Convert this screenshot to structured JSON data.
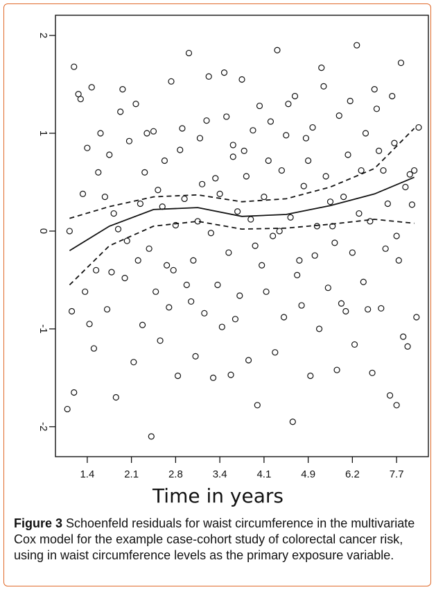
{
  "figure": {
    "label": "Figure 3",
    "caption": "Schoenfeld residuals for waist circumference in the multivariate Cox model for the example case-cohort study of colorectal cancer risk, using in waist circumference levels as the primary exposure variable."
  },
  "colors": {
    "frame": "#e06a2b",
    "ink": "#111111"
  },
  "chart_data": {
    "type": "scatter",
    "xlabel": "Time in years",
    "ylabel": "",
    "x_ticks": [
      1.4,
      2.1,
      2.8,
      3.4,
      4.1,
      4.9,
      6.2,
      7.7
    ],
    "y_ticks": [
      -2,
      -1,
      0,
      1,
      2
    ],
    "y_tick_labels": [
      "-2",
      "-1",
      "0",
      "1",
      "2"
    ],
    "ylim": [
      -2.2,
      2.1
    ],
    "x_tick_positions": [
      0,
      1,
      2,
      3,
      4,
      5,
      6,
      7
    ],
    "x_domain": [
      -0.5,
      7.5
    ],
    "grid": false,
    "points": [
      [
        -0.3,
        1.68
      ],
      [
        -0.15,
        1.35
      ],
      [
        0.1,
        1.47
      ],
      [
        0.3,
        1.0
      ],
      [
        0.5,
        0.78
      ],
      [
        0.6,
        0.18
      ],
      [
        0.8,
        1.45
      ],
      [
        1.1,
        1.3
      ],
      [
        1.3,
        0.6
      ],
      [
        1.5,
        1.02
      ],
      [
        1.7,
        0.25
      ],
      [
        1.9,
        1.53
      ],
      [
        2.1,
        0.83
      ],
      [
        2.3,
        1.82
      ],
      [
        2.5,
        0.1
      ],
      [
        2.7,
        1.13
      ],
      [
        2.9,
        0.54
      ],
      [
        3.1,
        1.62
      ],
      [
        3.3,
        0.88
      ],
      [
        3.5,
        1.55
      ],
      [
        3.7,
        0.12
      ],
      [
        3.9,
        1.28
      ],
      [
        4.1,
        0.72
      ],
      [
        4.3,
        1.85
      ],
      [
        4.5,
        0.98
      ],
      [
        4.7,
        1.38
      ],
      [
        4.9,
        0.46
      ],
      [
        5.1,
        1.06
      ],
      [
        5.3,
        1.67
      ],
      [
        5.5,
        0.3
      ],
      [
        5.7,
        1.18
      ],
      [
        5.9,
        0.78
      ],
      [
        6.1,
        1.9
      ],
      [
        6.3,
        1.0
      ],
      [
        6.5,
        1.45
      ],
      [
        6.7,
        0.62
      ],
      [
        6.9,
        1.38
      ],
      [
        7.1,
        1.72
      ],
      [
        7.3,
        0.58
      ],
      [
        7.5,
        1.06
      ],
      [
        -0.4,
        0.0
      ],
      [
        -0.1,
        0.38
      ],
      [
        0.2,
        -0.4
      ],
      [
        0.4,
        0.35
      ],
      [
        0.7,
        0.02
      ],
      [
        0.9,
        -0.1
      ],
      [
        1.2,
        0.28
      ],
      [
        1.4,
        -0.18
      ],
      [
        1.6,
        0.42
      ],
      [
        1.8,
        -0.35
      ],
      [
        2.0,
        0.06
      ],
      [
        2.2,
        0.33
      ],
      [
        2.4,
        -0.3
      ],
      [
        2.6,
        0.48
      ],
      [
        2.8,
        -0.02
      ],
      [
        3.0,
        0.38
      ],
      [
        3.2,
        -0.22
      ],
      [
        3.4,
        0.2
      ],
      [
        3.6,
        0.56
      ],
      [
        3.8,
        -0.15
      ],
      [
        4.0,
        0.35
      ],
      [
        4.2,
        -0.05
      ],
      [
        4.4,
        0.62
      ],
      [
        4.6,
        0.14
      ],
      [
        4.8,
        -0.3
      ],
      [
        5.0,
        0.72
      ],
      [
        5.2,
        0.05
      ],
      [
        5.4,
        0.56
      ],
      [
        5.6,
        -0.12
      ],
      [
        5.8,
        0.35
      ],
      [
        6.0,
        -0.22
      ],
      [
        6.2,
        0.62
      ],
      [
        6.4,
        0.1
      ],
      [
        6.6,
        0.82
      ],
      [
        6.8,
        0.28
      ],
      [
        7.0,
        -0.05
      ],
      [
        7.2,
        0.45
      ],
      [
        7.4,
        0.62
      ],
      [
        0.0,
        0.85
      ],
      [
        3.3,
        0.76
      ],
      [
        -0.35,
        -0.82
      ],
      [
        -0.05,
        -0.62
      ],
      [
        0.15,
        -1.2
      ],
      [
        0.45,
        -0.8
      ],
      [
        0.65,
        -1.7
      ],
      [
        0.85,
        -0.48
      ],
      [
        1.05,
        -1.34
      ],
      [
        1.25,
        -0.96
      ],
      [
        1.45,
        -2.1
      ],
      [
        1.65,
        -1.12
      ],
      [
        1.85,
        -0.78
      ],
      [
        2.05,
        -1.48
      ],
      [
        2.25,
        -0.55
      ],
      [
        2.45,
        -1.28
      ],
      [
        2.65,
        -0.84
      ],
      [
        2.85,
        -1.5
      ],
      [
        3.05,
        -0.98
      ],
      [
        3.25,
        -1.47
      ],
      [
        3.45,
        -0.66
      ],
      [
        3.65,
        -1.32
      ],
      [
        3.85,
        -1.78
      ],
      [
        4.05,
        -0.62
      ],
      [
        4.25,
        -1.24
      ],
      [
        4.45,
        -0.88
      ],
      [
        4.65,
        -1.95
      ],
      [
        4.85,
        -0.76
      ],
      [
        5.05,
        -1.48
      ],
      [
        5.25,
        -1.0
      ],
      [
        5.45,
        -0.58
      ],
      [
        5.65,
        -1.42
      ],
      [
        5.85,
        -0.82
      ],
      [
        6.05,
        -1.16
      ],
      [
        6.25,
        -0.52
      ],
      [
        6.45,
        -1.45
      ],
      [
        6.65,
        -0.79
      ],
      [
        6.85,
        -1.68
      ],
      [
        7.05,
        -0.3
      ],
      [
        7.25,
        -1.18
      ],
      [
        7.45,
        -0.88
      ],
      [
        7.0,
        -1.78
      ],
      [
        -0.45,
        -1.82
      ],
      [
        -0.3,
        -1.65
      ],
      [
        -0.2,
        1.4
      ],
      [
        0.05,
        -0.95
      ],
      [
        0.25,
        0.6
      ],
      [
        0.55,
        -0.42
      ],
      [
        0.75,
        1.22
      ],
      [
        0.95,
        0.92
      ],
      [
        1.15,
        -0.3
      ],
      [
        1.35,
        1.0
      ],
      [
        1.55,
        -0.62
      ],
      [
        1.75,
        0.72
      ],
      [
        1.95,
        -0.4
      ],
      [
        2.15,
        1.05
      ],
      [
        2.35,
        -0.72
      ],
      [
        2.55,
        0.95
      ],
      [
        2.75,
        1.58
      ],
      [
        2.95,
        -0.55
      ],
      [
        3.15,
        1.17
      ],
      [
        3.35,
        -0.9
      ],
      [
        3.55,
        0.82
      ],
      [
        3.75,
        1.03
      ],
      [
        3.95,
        -0.35
      ],
      [
        4.15,
        1.12
      ],
      [
        4.35,
        0.0
      ],
      [
        4.55,
        1.3
      ],
      [
        4.75,
        -0.45
      ],
      [
        4.95,
        0.95
      ],
      [
        5.15,
        -0.25
      ],
      [
        5.35,
        1.48
      ],
      [
        5.55,
        0.05
      ],
      [
        5.75,
        -0.74
      ],
      [
        5.95,
        1.33
      ],
      [
        6.15,
        0.18
      ],
      [
        6.35,
        -0.8
      ],
      [
        6.55,
        1.25
      ],
      [
        6.75,
        -0.18
      ],
      [
        6.95,
        0.9
      ],
      [
        7.15,
        -1.08
      ],
      [
        7.35,
        0.27
      ]
    ],
    "lines": [
      {
        "style": "solid",
        "x": [
          -0.4,
          0.5,
          1.5,
          2.5,
          3.5,
          4.5,
          5.5,
          6.5,
          7.4
        ],
        "y": [
          -0.2,
          0.05,
          0.22,
          0.24,
          0.15,
          0.17,
          0.26,
          0.38,
          0.55
        ]
      },
      {
        "style": "dashed",
        "x": [
          -0.4,
          0.5,
          1.5,
          2.5,
          3.5,
          4.5,
          5.5,
          6.5,
          7.4
        ],
        "y": [
          0.13,
          0.25,
          0.35,
          0.37,
          0.3,
          0.33,
          0.45,
          0.64,
          1.05
        ]
      },
      {
        "style": "dashed",
        "x": [
          -0.4,
          0.5,
          1.5,
          2.5,
          3.5,
          4.5,
          5.5,
          6.5,
          7.4
        ],
        "y": [
          -0.55,
          -0.15,
          0.05,
          0.1,
          0.02,
          0.03,
          0.07,
          0.12,
          0.08
        ]
      }
    ]
  }
}
